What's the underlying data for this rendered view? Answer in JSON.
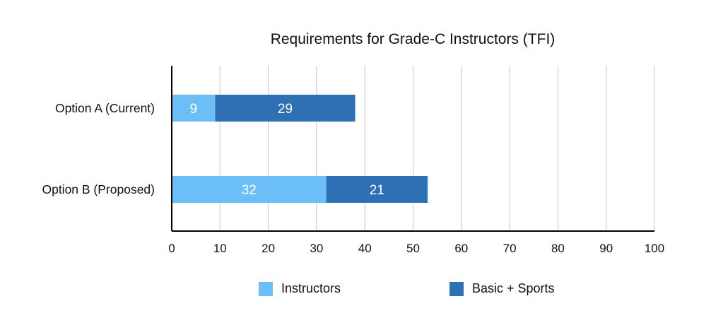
{
  "chart_data": {
    "type": "bar",
    "orientation": "horizontal",
    "stacked": true,
    "title": "Requirements for Grade-C Instructors (TFI)",
    "categories": [
      "Option A (Current)",
      "Option B (Proposed)"
    ],
    "series": [
      {
        "name": "Instructors",
        "values": [
          9,
          32
        ],
        "color": "#6CBEF7"
      },
      {
        "name": "Basic + Sports",
        "values": [
          29,
          21
        ],
        "color": "#2F6FB4"
      }
    ],
    "xlim": [
      0,
      100
    ],
    "xticks": [
      0,
      10,
      20,
      30,
      40,
      50,
      60,
      70,
      80,
      90,
      100
    ],
    "grid": true,
    "legend_position": "bottom"
  }
}
